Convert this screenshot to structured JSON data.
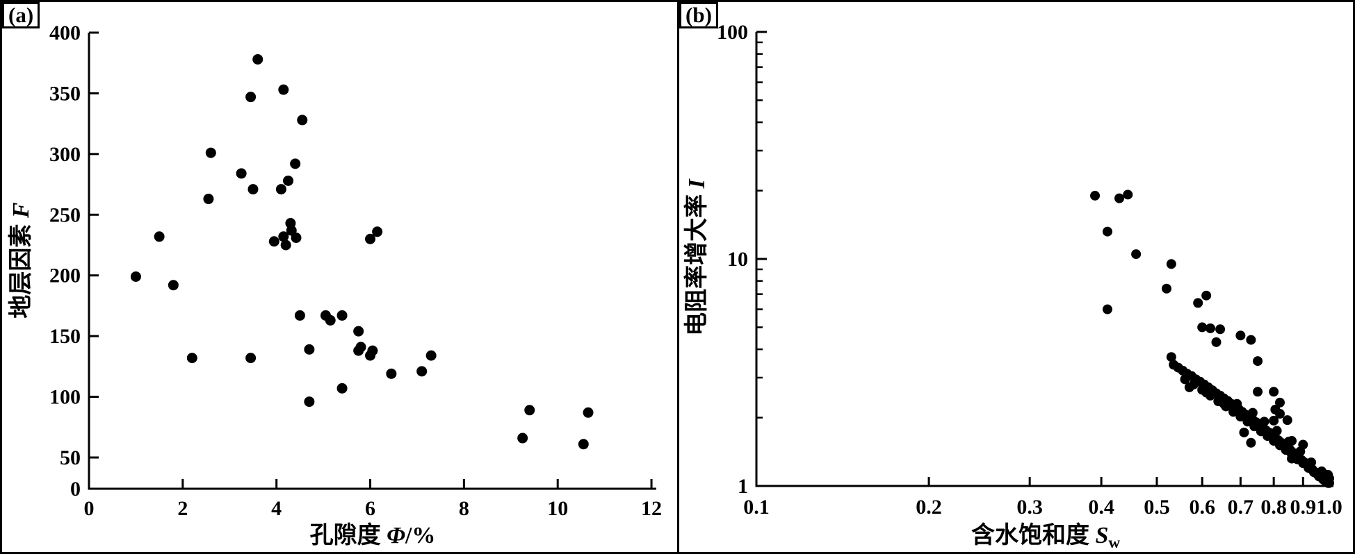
{
  "figure": {
    "background": "#ffffff",
    "border_color": "#000000",
    "marker_color": "#000000",
    "panel_labels": {
      "a": "(a)",
      "b": "(b)"
    }
  },
  "chart_data": [
    {
      "id": "panel-a",
      "type": "scatter",
      "panel_label": "(a)",
      "xlabel_cn": "孔隙度",
      "xlabel_symbol": "Φ",
      "xlabel_unit": "/%",
      "ylabel_cn": "地层因素",
      "ylabel_symbol": "F",
      "x_scale": "linear",
      "y_scale": "linear",
      "xlim": [
        0,
        12
      ],
      "ylim": [
        0,
        400
      ],
      "x_ticks": [
        0,
        2,
        4,
        6,
        8,
        10,
        12
      ],
      "x_tick_labels": [
        "0",
        "2",
        "4",
        "6",
        "8",
        "10",
        "12"
      ],
      "y_ticks": [
        0,
        50,
        100,
        150,
        200,
        250,
        300,
        350,
        400
      ],
      "y_tick_labels": [
        "0",
        "50",
        "100",
        "150",
        "200",
        "250",
        "300",
        "350",
        "400"
      ],
      "grid": false,
      "legend": null,
      "marker_color": "#000000",
      "points": [
        [
          1.0,
          199
        ],
        [
          1.5,
          232
        ],
        [
          1.8,
          192
        ],
        [
          2.2,
          132
        ],
        [
          2.6,
          301
        ],
        [
          2.55,
          263
        ],
        [
          3.25,
          284
        ],
        [
          3.5,
          271
        ],
        [
          3.6,
          378
        ],
        [
          3.45,
          347
        ],
        [
          4.15,
          353
        ],
        [
          4.55,
          328
        ],
        [
          4.4,
          292
        ],
        [
          4.25,
          278
        ],
        [
          4.1,
          271
        ],
        [
          4.3,
          243
        ],
        [
          4.32,
          237
        ],
        [
          4.15,
          232
        ],
        [
          3.95,
          228
        ],
        [
          4.2,
          225
        ],
        [
          4.42,
          231
        ],
        [
          6.0,
          230
        ],
        [
          6.15,
          236
        ],
        [
          4.5,
          167
        ],
        [
          5.05,
          167
        ],
        [
          5.15,
          163
        ],
        [
          5.4,
          167
        ],
        [
          5.75,
          154
        ],
        [
          5.75,
          138
        ],
        [
          5.8,
          141
        ],
        [
          4.7,
          139
        ],
        [
          6.0,
          134
        ],
        [
          6.05,
          138
        ],
        [
          5.4,
          107
        ],
        [
          4.7,
          96
        ],
        [
          6.45,
          119
        ],
        [
          7.3,
          134
        ],
        [
          7.1,
          121
        ],
        [
          3.45,
          132
        ],
        [
          9.4,
          89
        ],
        [
          9.25,
          66
        ],
        [
          10.65,
          87
        ],
        [
          10.55,
          61
        ]
      ]
    },
    {
      "id": "panel-b",
      "type": "scatter",
      "panel_label": "(b)",
      "xlabel_cn": "含水饱和度",
      "xlabel_symbol": "S",
      "xlabel_subscript": "w",
      "ylabel_cn": "电阻率增大率",
      "ylabel_symbol": "I",
      "x_scale": "log",
      "y_scale": "log",
      "xlim": [
        0.1,
        1.0
      ],
      "ylim": [
        1,
        100
      ],
      "x_ticks": [
        0.1,
        0.2,
        0.3,
        0.4,
        0.5,
        0.6,
        0.7,
        0.8,
        0.9,
        1.0
      ],
      "x_tick_labels": [
        "0.1",
        "0.2",
        "0.3",
        "0.4",
        "0.5",
        "0.6",
        "0.7",
        "0.8",
        "0.9",
        "1.0"
      ],
      "y_major_ticks": [
        1,
        10,
        100
      ],
      "y_major_tick_labels": [
        "1",
        "10",
        "100"
      ],
      "y_minor_ticks": [
        2,
        3,
        4,
        5,
        6,
        7,
        8,
        9,
        20,
        30,
        40,
        50,
        60,
        70,
        80,
        90
      ],
      "grid": false,
      "legend": null,
      "marker_color": "#000000",
      "points": [
        [
          0.39,
          19.0
        ],
        [
          0.43,
          18.5
        ],
        [
          0.445,
          19.2
        ],
        [
          0.41,
          13.2
        ],
        [
          0.46,
          10.5
        ],
        [
          0.41,
          6.0
        ],
        [
          0.53,
          9.5
        ],
        [
          0.52,
          7.4
        ],
        [
          0.59,
          6.4
        ],
        [
          0.61,
          6.9
        ],
        [
          0.6,
          5.0
        ],
        [
          0.62,
          4.95
        ],
        [
          0.645,
          4.9
        ],
        [
          0.635,
          4.3
        ],
        [
          0.7,
          4.6
        ],
        [
          0.73,
          4.4
        ],
        [
          0.75,
          3.55
        ],
        [
          0.75,
          2.6
        ],
        [
          0.8,
          2.6
        ],
        [
          0.82,
          2.33
        ],
        [
          0.805,
          2.17
        ],
        [
          0.82,
          2.08
        ],
        [
          0.8,
          1.94
        ],
        [
          0.845,
          1.95
        ],
        [
          0.86,
          1.58
        ],
        [
          0.9,
          1.52
        ],
        [
          0.86,
          1.32
        ],
        [
          0.71,
          1.72
        ],
        [
          0.73,
          1.55
        ],
        [
          0.53,
          3.7
        ],
        [
          0.535,
          3.42
        ],
        [
          0.545,
          3.32
        ],
        [
          0.555,
          3.22
        ],
        [
          0.565,
          3.12
        ],
        [
          0.575,
          3.05
        ],
        [
          0.585,
          2.95
        ],
        [
          0.595,
          2.88
        ],
        [
          0.605,
          2.8
        ],
        [
          0.615,
          2.72
        ],
        [
          0.625,
          2.64
        ],
        [
          0.635,
          2.56
        ],
        [
          0.645,
          2.5
        ],
        [
          0.655,
          2.43
        ],
        [
          0.665,
          2.37
        ],
        [
          0.675,
          2.3
        ],
        [
          0.685,
          2.24
        ],
        [
          0.695,
          2.18
        ],
        [
          0.705,
          2.12
        ],
        [
          0.715,
          2.06
        ],
        [
          0.725,
          2.01
        ],
        [
          0.735,
          1.96
        ],
        [
          0.745,
          1.91
        ],
        [
          0.755,
          1.86
        ],
        [
          0.765,
          1.81
        ],
        [
          0.775,
          1.76
        ],
        [
          0.785,
          1.72
        ],
        [
          0.795,
          1.67
        ],
        [
          0.805,
          1.63
        ],
        [
          0.815,
          1.59
        ],
        [
          0.825,
          1.55
        ],
        [
          0.835,
          1.51
        ],
        [
          0.845,
          1.47
        ],
        [
          0.855,
          1.44
        ],
        [
          0.865,
          1.4
        ],
        [
          0.875,
          1.37
        ],
        [
          0.885,
          1.33
        ],
        [
          0.895,
          1.3
        ],
        [
          0.905,
          1.27
        ],
        [
          0.915,
          1.24
        ],
        [
          0.925,
          1.21
        ],
        [
          0.935,
          1.18
        ],
        [
          0.945,
          1.15
        ],
        [
          0.955,
          1.12
        ],
        [
          0.965,
          1.1
        ],
        [
          0.975,
          1.07
        ],
        [
          0.985,
          1.05
        ],
        [
          0.995,
          1.03
        ],
        [
          0.56,
          2.95
        ],
        [
          0.58,
          2.8
        ],
        [
          0.6,
          2.65
        ],
        [
          0.62,
          2.5
        ],
        [
          0.64,
          2.36
        ],
        [
          0.66,
          2.24
        ],
        [
          0.68,
          2.12
        ],
        [
          0.7,
          2.02
        ],
        [
          0.72,
          1.92
        ],
        [
          0.74,
          1.83
        ],
        [
          0.76,
          1.74
        ],
        [
          0.78,
          1.66
        ],
        [
          0.8,
          1.58
        ],
        [
          0.82,
          1.51
        ],
        [
          0.84,
          1.44
        ],
        [
          0.86,
          1.38
        ],
        [
          0.88,
          1.31
        ],
        [
          0.9,
          1.26
        ],
        [
          0.92,
          1.2
        ],
        [
          0.94,
          1.15
        ],
        [
          0.96,
          1.1
        ],
        [
          0.98,
          1.06
        ],
        [
          1.0,
          1.03
        ],
        [
          0.57,
          2.72
        ],
        [
          0.61,
          2.58
        ],
        [
          0.655,
          2.3
        ],
        [
          0.69,
          2.3
        ],
        [
          0.735,
          2.1
        ],
        [
          0.77,
          1.92
        ],
        [
          0.81,
          1.75
        ],
        [
          0.85,
          1.57
        ],
        [
          0.89,
          1.42
        ],
        [
          0.93,
          1.27
        ],
        [
          0.97,
          1.16
        ],
        [
          1.0,
          1.08
        ],
        [
          0.995,
          1.12
        ]
      ]
    }
  ]
}
